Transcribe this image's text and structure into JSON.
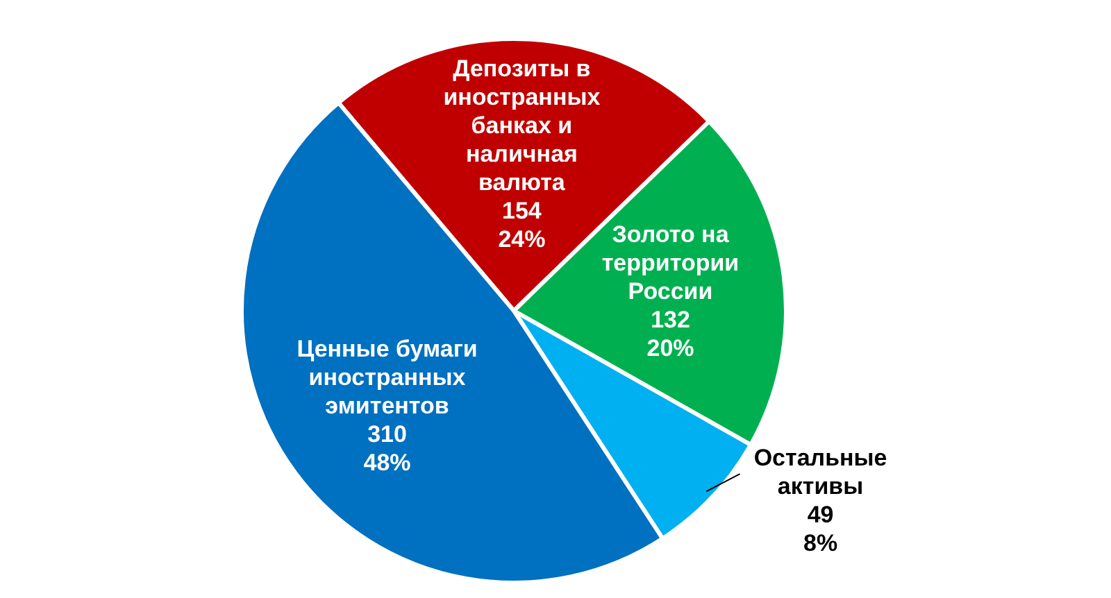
{
  "chart_data": {
    "type": "pie",
    "categories": [
      "Депозиты в иностранных банках и наличная валюта",
      "Золото на территории России",
      "Остальные активы",
      "Ценные бумаги иностранных эмитентов"
    ],
    "values": [
      154,
      132,
      49,
      310
    ],
    "colors": [
      "#c00000",
      "#00b050",
      "#00b0f0",
      "#0070c0"
    ],
    "value_labels": [
      "154\n24%",
      "132\n20%",
      "49\n8%",
      "310\n48%"
    ]
  }
}
